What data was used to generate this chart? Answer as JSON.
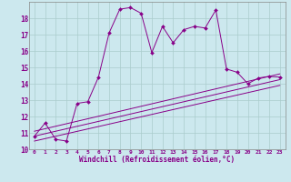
{
  "xlabel": "Windchill (Refroidissement éolien,°C)",
  "ylabel": "",
  "bg_color": "#cce8ee",
  "line_color": "#880088",
  "grid_color": "#aacccc",
  "xlim": [
    -0.5,
    23.5
  ],
  "ylim": [
    10,
    19
  ],
  "x_ticks": [
    0,
    1,
    2,
    3,
    4,
    5,
    6,
    7,
    8,
    9,
    10,
    11,
    12,
    13,
    14,
    15,
    16,
    17,
    18,
    19,
    20,
    21,
    22,
    23
  ],
  "y_ticks": [
    10,
    11,
    12,
    13,
    14,
    15,
    16,
    17,
    18
  ],
  "main_series_x": [
    0,
    1,
    2,
    3,
    4,
    5,
    6,
    7,
    8,
    9,
    10,
    11,
    12,
    13,
    14,
    15,
    16,
    17,
    18,
    19,
    20,
    21,
    22,
    23
  ],
  "main_series_y": [
    10.8,
    11.6,
    10.6,
    10.5,
    12.8,
    12.9,
    14.4,
    17.1,
    18.55,
    18.65,
    18.3,
    15.9,
    17.5,
    16.5,
    17.3,
    17.5,
    17.4,
    18.5,
    14.9,
    14.7,
    14.0,
    14.35,
    14.45,
    14.4
  ],
  "line2_x": [
    0,
    23
  ],
  "line2_y": [
    10.5,
    13.9
  ],
  "line3_x": [
    0,
    23
  ],
  "line3_y": [
    10.8,
    14.25
  ],
  "line4_x": [
    0,
    23
  ],
  "line4_y": [
    11.1,
    14.6
  ]
}
